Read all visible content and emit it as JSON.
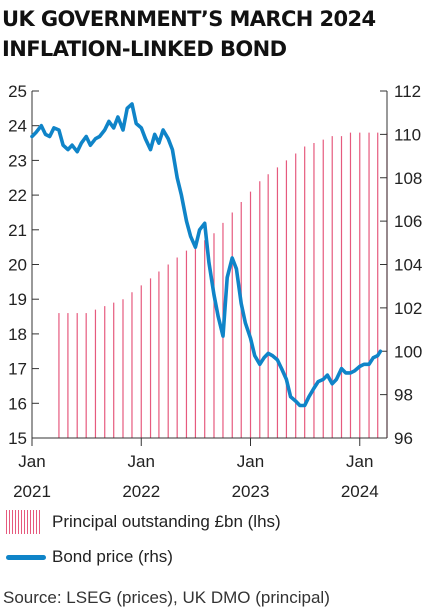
{
  "title_lines": [
    "UK GOVERNMENT’S MARCH 2024",
    "INFLATION-LINKED BOND"
  ],
  "legend": {
    "principal": "Principal outstanding £bn (lhs)",
    "price": "Bond price (rhs)"
  },
  "source": "Source: LSEG (prices), UK DMO (principal)",
  "colors": {
    "principal": "#e65a7e",
    "price": "#0f84c8",
    "axis": "#333333",
    "grid": "#bdbdbd"
  },
  "chart_data": {
    "type": "bar+line",
    "left_axis": {
      "label": "Principal outstanding £bn (lhs)",
      "ylim": [
        15,
        25
      ],
      "ticks": [
        "15",
        "16",
        "17",
        "18",
        "19",
        "20",
        "21",
        "22",
        "23",
        "24",
        "25"
      ]
    },
    "right_axis": {
      "label": "Bond price (rhs)",
      "ylim": [
        96,
        112
      ],
      "ticks": [
        "96",
        "98",
        "100",
        "102",
        "104",
        "106",
        "108",
        "110",
        "112"
      ]
    },
    "x_axis": {
      "start": "2021-01",
      "end": "2024-04",
      "ticks": [
        {
          "month": "2021-01",
          "top": "Jan",
          "bottom": "2021"
        },
        {
          "month": "2022-01",
          "top": "Jan",
          "bottom": "2022"
        },
        {
          "month": "2023-01",
          "top": "Jan",
          "bottom": "2023"
        },
        {
          "month": "2024-01",
          "top": "Jan",
          "bottom": "2024"
        }
      ]
    },
    "principal_series": {
      "name": "Principal outstanding £bn (lhs)",
      "months": [
        "2021-04",
        "2021-05",
        "2021-06",
        "2021-07",
        "2021-08",
        "2021-09",
        "2021-10",
        "2021-11",
        "2021-12",
        "2022-01",
        "2022-02",
        "2022-03",
        "2022-04",
        "2022-05",
        "2022-06",
        "2022-07",
        "2022-08",
        "2022-09",
        "2022-10",
        "2022-11",
        "2022-12",
        "2023-01",
        "2023-02",
        "2023-03",
        "2023-04",
        "2023-05",
        "2023-06",
        "2023-07",
        "2023-08",
        "2023-09",
        "2023-10",
        "2023-11",
        "2023-12",
        "2024-01",
        "2024-02",
        "2024-03",
        "2024-04"
      ],
      "values": [
        18.6,
        18.6,
        18.6,
        18.6,
        18.7,
        18.8,
        18.9,
        19.0,
        19.2,
        19.4,
        19.6,
        19.8,
        20.0,
        20.2,
        20.4,
        20.6,
        20.7,
        20.9,
        21.2,
        21.5,
        21.8,
        22.1,
        22.4,
        22.6,
        22.8,
        23.0,
        23.2,
        23.4,
        23.5,
        23.6,
        23.7,
        23.7,
        23.8,
        23.8,
        23.8,
        23.8,
        23.8
      ]
    },
    "price_series": {
      "name": "Bond price (rhs)",
      "points": [
        [
          "2021-01-01",
          109.9
        ],
        [
          "2021-01-15",
          110.1
        ],
        [
          "2021-02-01",
          110.4
        ],
        [
          "2021-02-15",
          110.0
        ],
        [
          "2021-03-01",
          109.9
        ],
        [
          "2021-03-15",
          110.3
        ],
        [
          "2021-04-01",
          110.2
        ],
        [
          "2021-04-15",
          109.5
        ],
        [
          "2021-05-01",
          109.3
        ],
        [
          "2021-05-15",
          109.5
        ],
        [
          "2021-06-01",
          109.2
        ],
        [
          "2021-06-15",
          109.6
        ],
        [
          "2021-07-01",
          109.9
        ],
        [
          "2021-07-15",
          109.5
        ],
        [
          "2021-08-01",
          109.8
        ],
        [
          "2021-08-15",
          109.9
        ],
        [
          "2021-09-01",
          110.2
        ],
        [
          "2021-09-15",
          110.6
        ],
        [
          "2021-10-01",
          110.3
        ],
        [
          "2021-10-15",
          110.8
        ],
        [
          "2021-11-01",
          110.2
        ],
        [
          "2021-11-15",
          111.2
        ],
        [
          "2021-12-01",
          111.4
        ],
        [
          "2021-12-15",
          110.5
        ],
        [
          "2022-01-01",
          110.3
        ],
        [
          "2022-01-15",
          109.8
        ],
        [
          "2022-02-01",
          109.3
        ],
        [
          "2022-02-15",
          110.0
        ],
        [
          "2022-03-01",
          109.6
        ],
        [
          "2022-03-15",
          110.2
        ],
        [
          "2022-04-01",
          109.8
        ],
        [
          "2022-04-15",
          109.3
        ],
        [
          "2022-05-01",
          108.0
        ],
        [
          "2022-05-15",
          107.2
        ],
        [
          "2022-06-01",
          106.0
        ],
        [
          "2022-06-15",
          105.3
        ],
        [
          "2022-07-01",
          104.8
        ],
        [
          "2022-07-15",
          105.6
        ],
        [
          "2022-08-01",
          105.9
        ],
        [
          "2022-08-15",
          104.1
        ],
        [
          "2022-09-01",
          102.6
        ],
        [
          "2022-09-15",
          101.6
        ],
        [
          "2022-10-01",
          100.7
        ],
        [
          "2022-10-15",
          103.4
        ],
        [
          "2022-11-01",
          104.3
        ],
        [
          "2022-11-15",
          103.8
        ],
        [
          "2022-12-01",
          102.2
        ],
        [
          "2022-12-15",
          101.3
        ],
        [
          "2023-01-01",
          100.6
        ],
        [
          "2023-01-15",
          99.8
        ],
        [
          "2023-02-01",
          99.4
        ],
        [
          "2023-02-15",
          99.7
        ],
        [
          "2023-03-01",
          99.9
        ],
        [
          "2023-03-15",
          99.8
        ],
        [
          "2023-04-01",
          99.6
        ],
        [
          "2023-04-15",
          99.2
        ],
        [
          "2023-05-01",
          98.7
        ],
        [
          "2023-05-15",
          97.9
        ],
        [
          "2023-06-01",
          97.7
        ],
        [
          "2023-06-15",
          97.5
        ],
        [
          "2023-07-01",
          97.5
        ],
        [
          "2023-07-15",
          97.9
        ],
        [
          "2023-08-01",
          98.3
        ],
        [
          "2023-08-15",
          98.6
        ],
        [
          "2023-09-01",
          98.7
        ],
        [
          "2023-09-15",
          98.9
        ],
        [
          "2023-10-01",
          98.5
        ],
        [
          "2023-10-15",
          98.7
        ],
        [
          "2023-11-01",
          99.2
        ],
        [
          "2023-11-15",
          99.0
        ],
        [
          "2023-12-01",
          99.0
        ],
        [
          "2023-12-15",
          99.1
        ],
        [
          "2024-01-01",
          99.3
        ],
        [
          "2024-01-15",
          99.4
        ],
        [
          "2024-02-01",
          99.4
        ],
        [
          "2024-02-15",
          99.7
        ],
        [
          "2024-03-01",
          99.8
        ],
        [
          "2024-03-10",
          100.0
        ]
      ]
    },
    "grid": true
  }
}
